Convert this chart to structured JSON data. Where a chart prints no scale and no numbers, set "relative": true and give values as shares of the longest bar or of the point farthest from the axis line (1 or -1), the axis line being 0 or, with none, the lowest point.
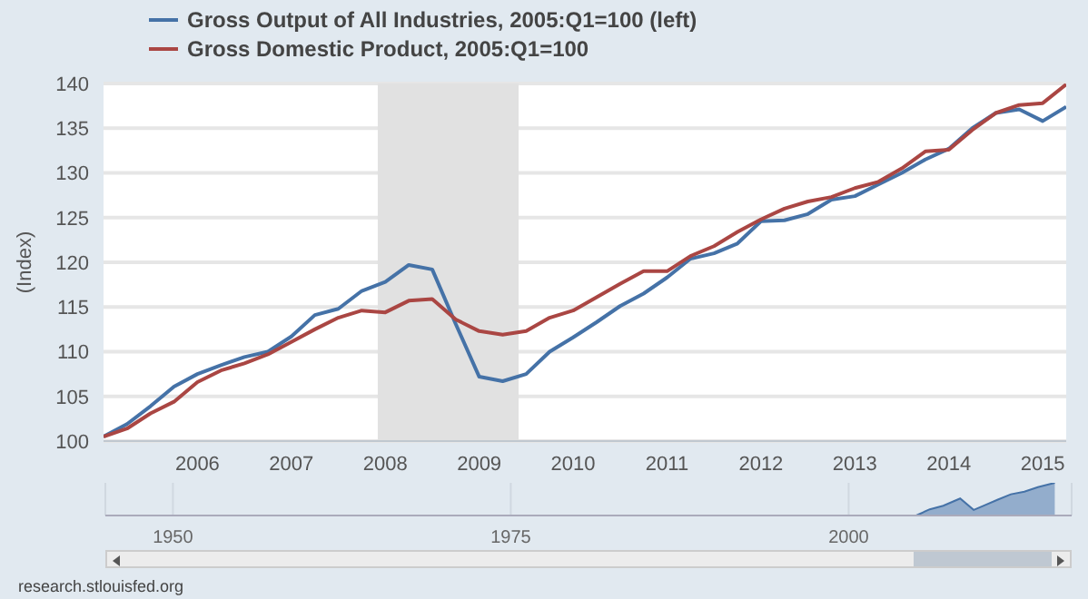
{
  "chart_data": [
    {
      "type": "line",
      "ylabel": "(Index)",
      "x": [
        2005,
        2005.25,
        2005.5,
        2005.75,
        2006,
        2006.25,
        2006.5,
        2006.75,
        2007,
        2007.25,
        2007.5,
        2007.75,
        2008,
        2008.25,
        2008.5,
        2008.75,
        2009,
        2009.25,
        2009.5,
        2009.75,
        2010,
        2010.25,
        2010.5,
        2010.75,
        2011,
        2011.25,
        2011.5,
        2011.75,
        2012,
        2012.25,
        2012.5,
        2012.75,
        2013,
        2013.25,
        2013.5,
        2013.75,
        2014,
        2014.25,
        2014.5,
        2014.75,
        2015,
        2015.25
      ],
      "series": [
        {
          "name": "Gross Output of All Industries, 2005:Q1=100 (left)",
          "color": "#4572a7",
          "values": [
            100.5,
            101.9,
            103.9,
            106.1,
            107.5,
            108.5,
            109.4,
            110.0,
            111.7,
            114.1,
            114.8,
            116.8,
            117.8,
            119.7,
            119.2,
            113.1,
            107.2,
            106.7,
            107.5,
            110.0,
            111.6,
            113.3,
            115.1,
            116.5,
            118.3,
            120.4,
            121.0,
            122.1,
            124.6,
            124.7,
            125.4,
            127.0,
            127.4,
            128.7,
            130.0,
            131.5,
            132.7,
            135.0,
            136.7,
            137.1,
            135.8,
            137.4
          ]
        },
        {
          "name": "Gross Domestic Product, 2005:Q1=100",
          "color": "#aa4643",
          "values": [
            100.5,
            101.4,
            103.1,
            104.4,
            106.6,
            107.9,
            108.7,
            109.7,
            111.1,
            112.5,
            113.8,
            114.6,
            114.4,
            115.7,
            115.9,
            113.6,
            112.3,
            111.9,
            112.3,
            113.8,
            114.6,
            116.1,
            117.6,
            119.0,
            119.0,
            120.7,
            121.8,
            123.4,
            124.8,
            126.0,
            126.8,
            127.3,
            128.3,
            129.0,
            130.5,
            132.4,
            132.6,
            134.8,
            136.7,
            137.6,
            137.8,
            139.9
          ]
        }
      ],
      "xlim": [
        2005,
        2015.25
      ],
      "xticks": [
        2006,
        2007,
        2008,
        2009,
        2010,
        2011,
        2012,
        2013,
        2014,
        2015
      ],
      "ylim": [
        100,
        140
      ],
      "yticks": [
        100,
        105,
        110,
        115,
        120,
        125,
        130,
        135,
        140
      ],
      "bands": [
        {
          "axis": "x",
          "from": 2007.92,
          "to": 2009.42,
          "color": "#e1e1e1"
        }
      ],
      "grid": "y",
      "legend": "top left",
      "annotations": [
        "research.stlouisfed.org"
      ]
    },
    {
      "type": "area",
      "relative": true,
      "color": "#4572a7",
      "x": [
        2005,
        2006,
        2007,
        2008.25,
        2009.25,
        2010,
        2011,
        2012,
        2013,
        2014,
        2015.25
      ],
      "values": [
        0,
        0.19,
        0.3,
        0.52,
        0.17,
        0.3,
        0.48,
        0.65,
        0.73,
        0.87,
        1
      ],
      "xlim": [
        1945,
        2016.5
      ],
      "xticks": [
        1950,
        1975,
        2000
      ],
      "grid": "x"
    }
  ]
}
